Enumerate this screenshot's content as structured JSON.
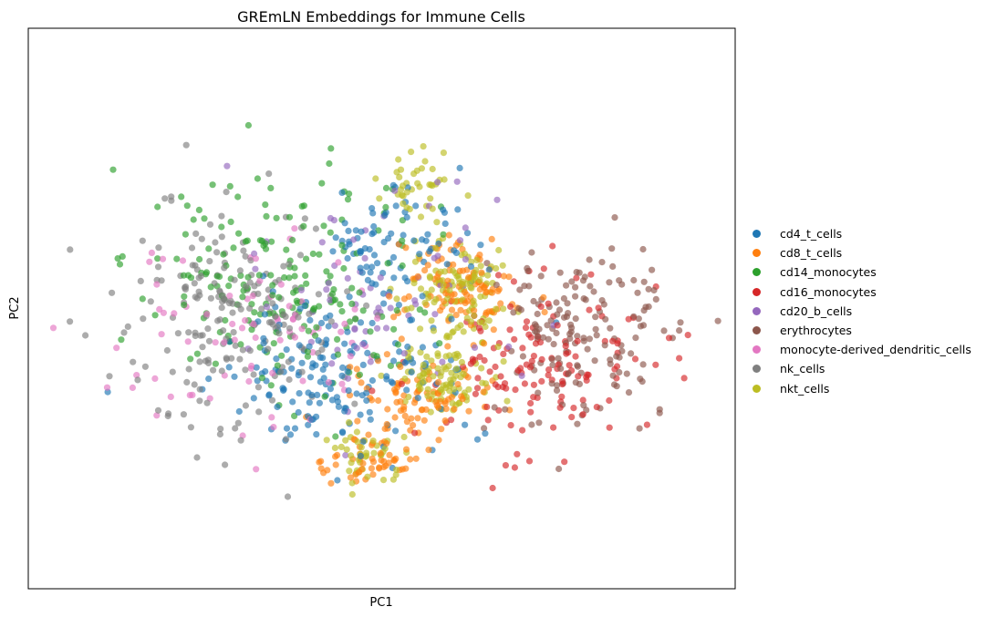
{
  "chart_data": {
    "type": "scatter",
    "title": "GREmLN Embeddings for Immune Cells",
    "xlabel": "PC1",
    "ylabel": "PC2",
    "xlim": [
      -5.5,
      5.5
    ],
    "ylim": [
      -5.5,
      5.5
    ],
    "grid": false,
    "legend": "right",
    "series": [
      {
        "name": "cd4_t_cells",
        "color": "#1f77b4",
        "center": [
          -0.6,
          -1.3
        ],
        "spread": [
          1.7,
          1.5
        ],
        "count": 170,
        "extra_clusters": [
          {
            "center": [
              0.2,
              1.3
            ],
            "spread": [
              1.0,
              1.0
            ],
            "count": 80
          }
        ]
      },
      {
        "name": "cd8_t_cells",
        "color": "#ff7f0e",
        "center": [
          1.2,
          0.4
        ],
        "spread": [
          0.8,
          0.9
        ],
        "count": 110,
        "extra_clusters": [
          {
            "center": [
              0.6,
              -1.8
            ],
            "spread": [
              0.9,
              0.8
            ],
            "count": 90
          },
          {
            "center": [
              -0.2,
              -3.0
            ],
            "spread": [
              0.6,
              0.5
            ],
            "count": 50
          }
        ]
      },
      {
        "name": "cd14_monocytes",
        "color": "#2ca02c",
        "center": [
          -1.5,
          0.5
        ],
        "spread": [
          2.0,
          2.0
        ],
        "count": 200
      },
      {
        "name": "cd16_monocytes",
        "color": "#d62728",
        "center": [
          2.5,
          -1.0
        ],
        "spread": [
          1.8,
          1.6
        ],
        "count": 140
      },
      {
        "name": "cd20_b_cells",
        "color": "#9467bd",
        "center": [
          -0.2,
          0.3
        ],
        "spread": [
          1.8,
          2.0
        ],
        "count": 70
      },
      {
        "name": "erythrocytes",
        "color": "#8c564b",
        "center": [
          3.2,
          -0.5
        ],
        "spread": [
          1.1,
          1.7
        ],
        "count": 160
      },
      {
        "name": "monocyte-derived_dendritic_cells",
        "color": "#e377c2",
        "center": [
          -2.0,
          -0.5
        ],
        "spread": [
          2.0,
          2.0
        ],
        "count": 80
      },
      {
        "name": "nk_cells",
        "color": "#7f7f7f",
        "center": [
          -2.3,
          -0.2
        ],
        "spread": [
          1.7,
          2.1
        ],
        "count": 200
      },
      {
        "name": "nkt_cells",
        "color": "#bcbd22",
        "center": [
          1.2,
          0.4
        ],
        "spread": [
          0.7,
          0.8
        ],
        "count": 110,
        "extra_clusters": [
          {
            "center": [
              1.0,
              -1.4
            ],
            "spread": [
              0.8,
              0.6
            ],
            "count": 90
          },
          {
            "center": [
              0.6,
              2.5
            ],
            "spread": [
              0.5,
              0.8
            ],
            "count": 40
          },
          {
            "center": [
              -0.3,
              -2.9
            ],
            "spread": [
              0.5,
              0.5
            ],
            "count": 40
          }
        ]
      }
    ]
  }
}
